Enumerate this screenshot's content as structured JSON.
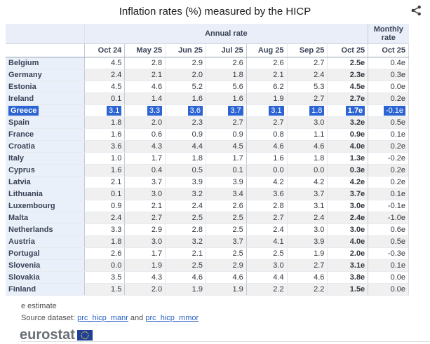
{
  "title": "Inflation rates (%) measured by the HICP",
  "icons": {
    "share": "share-icon",
    "eu_flag": "eu-flag-icon"
  },
  "colors": {
    "selection_blue": "#2c64d3",
    "header_band_bg": "#e9eef8",
    "country_col_bg": "#eaf0f9",
    "row_alt_bg": "#f0f0f0",
    "link_blue": "#2962c4",
    "flag_blue": "#1e3f9c",
    "star_yellow": "#ffd617",
    "logo_gray": "#6b7077"
  },
  "table": {
    "annual_header": "Annual rate",
    "monthly_header": "Monthly rate",
    "month_headers": [
      "Oct 24",
      "May 25",
      "Jun 25",
      "Jul 25",
      "Aug 25",
      "Sep 25",
      "Oct 25"
    ],
    "monthly_month": "Oct 25",
    "rows": [
      {
        "country": "Belgium",
        "values": [
          "4.5",
          "2.8",
          "2.9",
          "2.6",
          "2.6",
          "2.7",
          "2.5e"
        ],
        "monthly": "0.4e",
        "selected": false
      },
      {
        "country": "Germany",
        "values": [
          "2.4",
          "2.1",
          "2.0",
          "1.8",
          "2.1",
          "2.4",
          "2.3e"
        ],
        "monthly": "0.3e",
        "selected": false
      },
      {
        "country": "Estonia",
        "values": [
          "4.5",
          "4.6",
          "5.2",
          "5.6",
          "6.2",
          "5.3",
          "4.5e"
        ],
        "monthly": "0.0e",
        "selected": false
      },
      {
        "country": "Ireland",
        "values": [
          "0.1",
          "1.4",
          "1.6",
          "1.6",
          "1.9",
          "2.7",
          "2.7e"
        ],
        "monthly": "0.2e",
        "selected": false
      },
      {
        "country": "Greece",
        "values": [
          "3.1",
          "3.3",
          "3.6",
          "3.7",
          "3.1",
          "1.8",
          "1.7e"
        ],
        "monthly": "-0.1e",
        "selected": true
      },
      {
        "country": "Spain",
        "values": [
          "1.8",
          "2.0",
          "2.3",
          "2.7",
          "2.7",
          "3.0",
          "3.2e"
        ],
        "monthly": "0.5e",
        "selected": false
      },
      {
        "country": "France",
        "values": [
          "1.6",
          "0.6",
          "0.9",
          "0.9",
          "0.8",
          "1.1",
          "0.9e"
        ],
        "monthly": "0.1e",
        "selected": false
      },
      {
        "country": "Croatia",
        "values": [
          "3.6",
          "4.3",
          "4.4",
          "4.5",
          "4.6",
          "4.6",
          "4.0e"
        ],
        "monthly": "0.2e",
        "selected": false
      },
      {
        "country": "Italy",
        "values": [
          "1.0",
          "1.7",
          "1.8",
          "1.7",
          "1.6",
          "1.8",
          "1.3e"
        ],
        "monthly": "-0.2e",
        "selected": false
      },
      {
        "country": "Cyprus",
        "values": [
          "1.6",
          "0.4",
          "0.5",
          "0.1",
          "0.0",
          "0.0",
          "0.3e"
        ],
        "monthly": "0.2e",
        "selected": false
      },
      {
        "country": "Latvia",
        "values": [
          "2.1",
          "3.7",
          "3.9",
          "3.9",
          "4.2",
          "4.2",
          "4.2e"
        ],
        "monthly": "0.2e",
        "selected": false
      },
      {
        "country": "Lithuania",
        "values": [
          "0.1",
          "3.0",
          "3.2",
          "3.4",
          "3.6",
          "3.7",
          "3.7e"
        ],
        "monthly": "0.1e",
        "selected": false
      },
      {
        "country": "Luxembourg",
        "values": [
          "0.9",
          "2.1",
          "2.4",
          "2.6",
          "2.8",
          "3.1",
          "3.0e"
        ],
        "monthly": "-0.1e",
        "selected": false
      },
      {
        "country": "Malta",
        "values": [
          "2.4",
          "2.7",
          "2.5",
          "2.5",
          "2.7",
          "2.4",
          "2.4e"
        ],
        "monthly": "-1.0e",
        "selected": false
      },
      {
        "country": "Netherlands",
        "values": [
          "3.3",
          "2.9",
          "2.8",
          "2.5",
          "2.4",
          "3.0",
          "3.0e"
        ],
        "monthly": "0.6e",
        "selected": false
      },
      {
        "country": "Austria",
        "values": [
          "1.8",
          "3.0",
          "3.2",
          "3.7",
          "4.1",
          "3.9",
          "4.0e"
        ],
        "monthly": "0.5e",
        "selected": false
      },
      {
        "country": "Portugal",
        "values": [
          "2.6",
          "1.7",
          "2.1",
          "2.5",
          "2.5",
          "1.9",
          "2.0e"
        ],
        "monthly": "-0.3e",
        "selected": false
      },
      {
        "country": "Slovenia",
        "values": [
          "0.0",
          "1.9",
          "2.5",
          "2.9",
          "3.0",
          "2.7",
          "3.1e"
        ],
        "monthly": "0.1e",
        "selected": false
      },
      {
        "country": "Slovakia",
        "values": [
          "3.5",
          "4.3",
          "4.6",
          "4.6",
          "4.4",
          "4.6",
          "3.8e"
        ],
        "monthly": "0.0e",
        "selected": false
      },
      {
        "country": "Finland",
        "values": [
          "1.5",
          "2.0",
          "1.9",
          "1.9",
          "2.2",
          "2.2",
          "1.5e"
        ],
        "monthly": "0.0e",
        "selected": false
      }
    ]
  },
  "footer": {
    "estimate_note": "e estimate",
    "source_label": "Source dataset: ",
    "link1": "prc_hicp_manr",
    "and_text": " and ",
    "link2": "prc_hicp_mmor",
    "logo_text": "eurostat"
  }
}
